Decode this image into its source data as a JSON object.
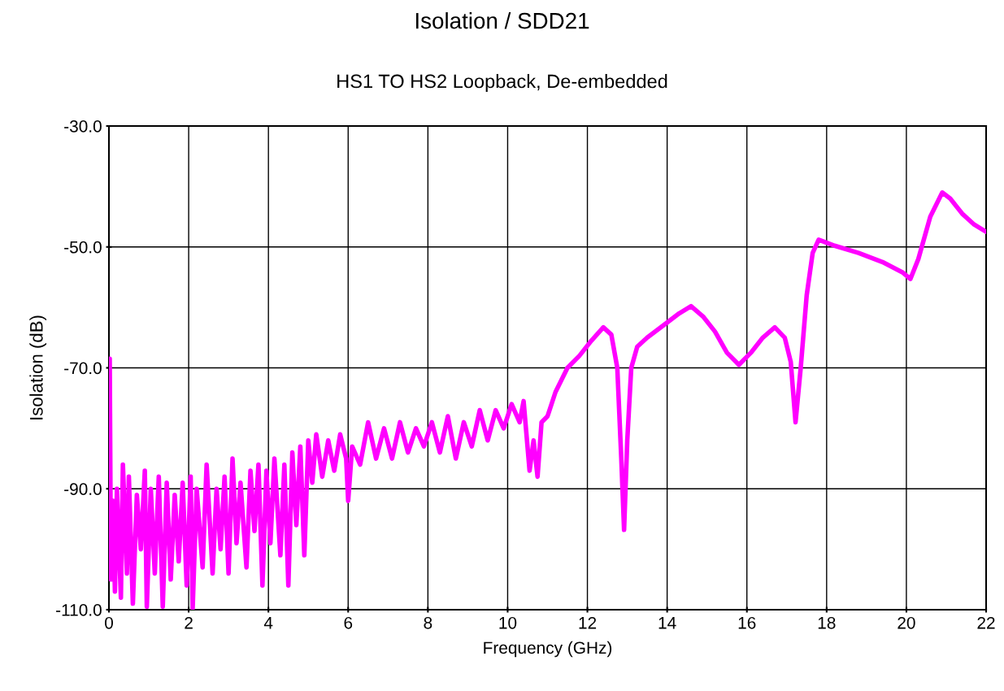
{
  "chart_data": {
    "type": "line",
    "title": "Isolation / SDD21",
    "subtitle": "HS1 TO HS2 Loopback, De-embedded",
    "xlabel": "Frequency (GHz)",
    "ylabel": "Isolation (dB)",
    "xlim": [
      0,
      22
    ],
    "xticks": [
      0,
      2,
      4,
      6,
      8,
      10,
      12,
      14,
      16,
      18,
      20,
      22
    ],
    "ylim": [
      -110,
      -30
    ],
    "yticks": [
      {
        "value": -110,
        "label": "-110.0"
      },
      {
        "value": -90,
        "label": "-90.0"
      },
      {
        "value": -70,
        "label": "-70.0"
      },
      {
        "value": -50,
        "label": "-50.0"
      },
      {
        "value": -30,
        "label": "-30.0"
      }
    ],
    "grid": true,
    "marker": "none",
    "line_style": "solid",
    "series": [
      {
        "color": "#ff00ff",
        "x": [
          0,
          0.02,
          0.05,
          0.1,
          0.15,
          0.2,
          0.3,
          0.35,
          0.45,
          0.5,
          0.6,
          0.7,
          0.8,
          0.9,
          0.95,
          1.05,
          1.15,
          1.25,
          1.35,
          1.45,
          1.55,
          1.65,
          1.75,
          1.85,
          1.95,
          2.05,
          2.1,
          2.2,
          2.35,
          2.45,
          2.6,
          2.7,
          2.8,
          2.9,
          3.0,
          3.1,
          3.2,
          3.3,
          3.45,
          3.55,
          3.65,
          3.75,
          3.85,
          3.95,
          4.05,
          4.15,
          4.3,
          4.4,
          4.5,
          4.6,
          4.7,
          4.8,
          4.9,
          5.0,
          5.1,
          5.2,
          5.35,
          5.5,
          5.65,
          5.8,
          5.95,
          6.0,
          6.1,
          6.3,
          6.5,
          6.7,
          6.9,
          7.1,
          7.3,
          7.5,
          7.7,
          7.9,
          8.1,
          8.3,
          8.5,
          8.7,
          8.9,
          9.1,
          9.3,
          9.5,
          9.7,
          9.9,
          10.1,
          10.3,
          10.4,
          10.55,
          10.65,
          10.75,
          10.85,
          11.0,
          11.2,
          11.5,
          11.8,
          12.1,
          12.4,
          12.6,
          12.75,
          12.85,
          12.92,
          13.0,
          13.1,
          13.25,
          13.5,
          14.0,
          14.3,
          14.6,
          14.9,
          15.2,
          15.5,
          15.8,
          16.1,
          16.4,
          16.7,
          16.95,
          17.1,
          17.22,
          17.35,
          17.5,
          17.65,
          17.8,
          18.2,
          18.8,
          19.4,
          19.9,
          20.1,
          20.3,
          20.6,
          20.9,
          21.1,
          21.4,
          21.7,
          22.0
        ],
        "values": [
          -100,
          -68.5,
          -105,
          -92,
          -107,
          -90,
          -108,
          -86,
          -104,
          -88,
          -109,
          -91,
          -100,
          -87,
          -109.5,
          -90,
          -104,
          -88,
          -109.5,
          -89,
          -105,
          -91,
          -102,
          -89,
          -106,
          -88,
          -109.8,
          -90,
          -103,
          -86,
          -104,
          -90,
          -100,
          -88,
          -104,
          -85,
          -99,
          -89,
          -103,
          -87,
          -97,
          -86,
          -106,
          -87,
          -99,
          -85,
          -101,
          -86,
          -106,
          -84,
          -96,
          -83,
          -101,
          -82,
          -89,
          -81,
          -88,
          -82,
          -87,
          -81,
          -85,
          -92,
          -83,
          -86,
          -79,
          -85,
          -80,
          -85,
          -79,
          -84,
          -80,
          -83,
          -79,
          -84,
          -78,
          -85,
          -79,
          -83,
          -77,
          -82,
          -77,
          -80,
          -76,
          -79,
          -75.5,
          -87,
          -82,
          -88,
          -79,
          -78,
          -74,
          -70,
          -68,
          -65.5,
          -63.3,
          -64.5,
          -70,
          -85,
          -96.8,
          -82,
          -70,
          -66.5,
          -65,
          -62.5,
          -61,
          -59.8,
          -61.5,
          -64,
          -67.5,
          -69.5,
          -67.5,
          -65,
          -63.3,
          -65,
          -69,
          -79,
          -70,
          -58,
          -51,
          -48.8,
          -49.8,
          -51,
          -52.5,
          -54.2,
          -55.3,
          -52,
          -45,
          -41,
          -42,
          -44.5,
          -46.3,
          -47.5
        ]
      }
    ]
  }
}
